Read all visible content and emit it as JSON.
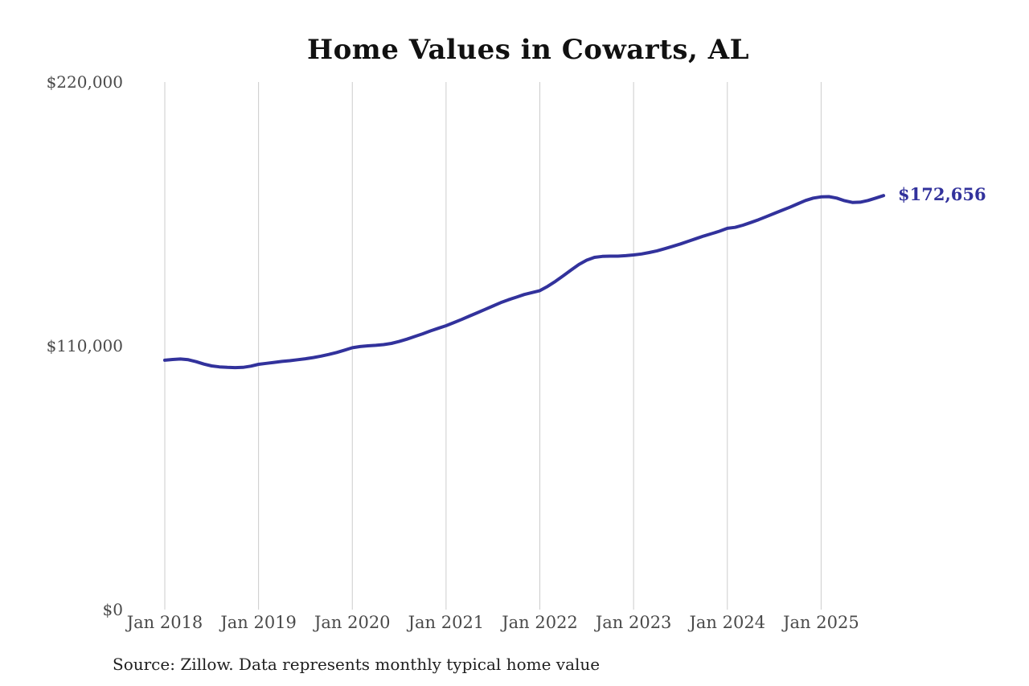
{
  "colors": {
    "line": "#32329c",
    "grid": "#cccccc",
    "axis_text": "#4a4a4a",
    "title_text": "#111111",
    "end_label_text": "#32329c",
    "source_text": "#1f1f1f",
    "background": "#ffffff"
  },
  "chart_data": {
    "type": "line",
    "title": "Home Values in Cowarts, AL",
    "source": "Source: Zillow. Data represents monthly typical home value",
    "end_label": "$172,656",
    "final_value": 172656,
    "ylabel": "",
    "xlabel": "",
    "ylim": [
      0,
      220000
    ],
    "grid": "vertical-only",
    "legend": "none",
    "y_ticks": [
      {
        "label": "$0",
        "value": 0
      },
      {
        "label": "$110,000",
        "value": 110000
      },
      {
        "label": "$220,000",
        "value": 220000
      }
    ],
    "x_tick_labels": [
      "Jan 2018",
      "Jan 2019",
      "Jan 2020",
      "Jan 2021",
      "Jan 2022",
      "Jan 2023",
      "Jan 2024",
      "Jan 2025"
    ],
    "x_tick_month_indices": [
      0,
      12,
      24,
      36,
      48,
      60,
      72,
      84
    ],
    "x": [
      "2018-01",
      "2018-02",
      "2018-03",
      "2018-04",
      "2018-05",
      "2018-06",
      "2018-07",
      "2018-08",
      "2018-09",
      "2018-10",
      "2018-11",
      "2018-12",
      "2019-01",
      "2019-02",
      "2019-03",
      "2019-04",
      "2019-05",
      "2019-06",
      "2019-07",
      "2019-08",
      "2019-09",
      "2019-10",
      "2019-11",
      "2019-12",
      "2020-01",
      "2020-02",
      "2020-03",
      "2020-04",
      "2020-05",
      "2020-06",
      "2020-07",
      "2020-08",
      "2020-09",
      "2020-10",
      "2020-11",
      "2020-12",
      "2021-01",
      "2021-02",
      "2021-03",
      "2021-04",
      "2021-05",
      "2021-06",
      "2021-07",
      "2021-08",
      "2021-09",
      "2021-10",
      "2021-11",
      "2021-12",
      "2022-01",
      "2022-02",
      "2022-03",
      "2022-04",
      "2022-05",
      "2022-06",
      "2022-07",
      "2022-08",
      "2022-09",
      "2022-10",
      "2022-11",
      "2022-12",
      "2023-01",
      "2023-02",
      "2023-03",
      "2023-04",
      "2023-05",
      "2023-06",
      "2023-07",
      "2023-08",
      "2023-09",
      "2023-10",
      "2023-11",
      "2023-12",
      "2024-01",
      "2024-02",
      "2024-03",
      "2024-04",
      "2024-05",
      "2024-06",
      "2024-07",
      "2024-08",
      "2024-09",
      "2024-10",
      "2024-11",
      "2024-12",
      "2025-01",
      "2025-02",
      "2025-03",
      "2025-04",
      "2025-05",
      "2025-06",
      "2025-07",
      "2025-08",
      "2025-09"
    ],
    "series": [
      {
        "name": "Monthly typical home value",
        "values": [
          104000,
          104300,
          104500,
          104200,
          103400,
          102400,
          101600,
          101200,
          101000,
          100900,
          101000,
          101500,
          102300,
          102700,
          103100,
          103500,
          103800,
          104200,
          104600,
          105100,
          105700,
          106400,
          107200,
          108200,
          109200,
          109700,
          110000,
          110200,
          110500,
          111000,
          111800,
          112800,
          113900,
          115000,
          116200,
          117300,
          118400,
          119700,
          121000,
          122400,
          123800,
          125200,
          126600,
          128000,
          129200,
          130300,
          131400,
          132200,
          133000,
          134800,
          136900,
          139200,
          141600,
          143900,
          145700,
          146900,
          147300,
          147400,
          147400,
          147600,
          147900,
          148300,
          148900,
          149600,
          150500,
          151500,
          152500,
          153600,
          154700,
          155800,
          156800,
          157800,
          159000,
          159400,
          160300,
          161400,
          162600,
          163900,
          165200,
          166500,
          167800,
          169200,
          170600,
          171600,
          172100,
          172200,
          171600,
          170500,
          169800,
          169900,
          170600,
          171600,
          172656
        ]
      }
    ]
  }
}
